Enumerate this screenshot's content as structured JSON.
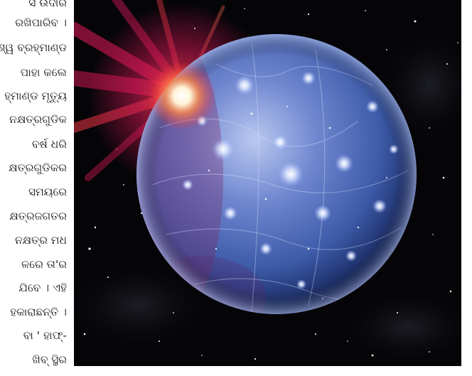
{
  "article": {
    "lines": [
      "ସ ଉଦୀର",
      "ରଖିପାରିବ ।",
      "ବିଶ୍ୱ ବ୍ରହ୍ମାଣ୍ଡ",
      "ପାହା କଲେ",
      "ହ୍ମାଣ୍ଡ ମୃତ୍ୟୁ",
      "ନକ୍ଷତ୍ରଗୁଡିକ",
      "ବର୍ଷ ଧରି",
      "କ୍ଷତ୍ରଗୁଡିକର",
      "ସମୟରେ",
      "କ୍ଷତ୍ରଜଗତର",
      "ନକ୍ଷତ୍ର ମଧ",
      "ଳରେ ତା'ର",
      "ଯିବେ । ଏହି",
      "ହକାରାଛନ୍ତି ।",
      "ବା ' ହାଫ୍-",
      "ଖିବ୍ ସ୍ଥିର"
    ]
  },
  "image": {
    "subject": "cosmic-sphere-with-flare",
    "colors": {
      "background": "#050508",
      "sphere_light": "#b9c8f0",
      "sphere_mid": "#3d5aa8",
      "sphere_dark": "#0d1a4a",
      "flare_core": "#ffffff",
      "flare_glow": "#ff4a3a",
      "flare_rays": "#e0195a"
    }
  }
}
